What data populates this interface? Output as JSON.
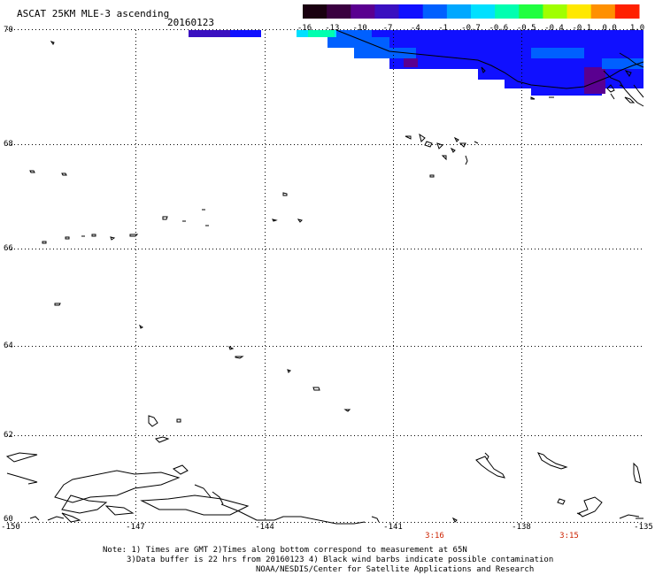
{
  "title": "ASCAT 25KM MLE-3 ascending",
  "date": "20160123",
  "colorbar": {
    "labels": [
      "-16",
      "-13",
      "-10",
      "-7",
      "-4",
      "-1",
      "-0.7",
      "-0.6",
      "-0.5",
      "-0.4",
      "-0.1",
      "0.0",
      "1.0"
    ],
    "colors": [
      "#1a0010",
      "#3a0040",
      "#5a0090",
      "#3a10c0",
      "#1010ff",
      "#0060ff",
      "#00a8ff",
      "#00e0ff",
      "#00ffb0",
      "#20ff40",
      "#a0ff00",
      "#ffe800",
      "#ff9000",
      "#ff2000"
    ]
  },
  "latitude_labels": [
    "70",
    "68",
    "66",
    "64",
    "62",
    "60"
  ],
  "longitude_labels": [
    "-150",
    "-147",
    "-144",
    "-141",
    "-138",
    "-135"
  ],
  "pass_times": [
    "3:16",
    "3:15"
  ],
  "notes": [
    "Note: 1) Times are GMT 2)Times along bottom correspond to measurement at 65N",
    "3)Data buffer is 22 hrs from 20160123 4) Black wind barbs indicate possible contamination",
    "NOAA/NESDIS/Center for Satellite Applications and Research"
  ],
  "colors": {
    "grid": "#000000",
    "coast": "#000000",
    "time_text": "#cc2200",
    "swath_main": "#1010ff",
    "swath_dark": "#3a10c0",
    "swath_light": "#0060ff",
    "swath_cyan": "#00e0ff"
  }
}
